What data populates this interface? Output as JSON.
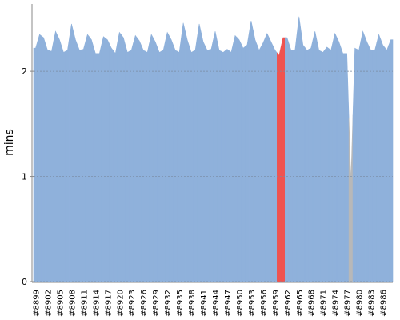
{
  "chart_data": {
    "type": "area",
    "y_label": "mins",
    "categories": [
      "#8899",
      null,
      null,
      "#8902",
      null,
      null,
      "#8905",
      null,
      null,
      "#8908",
      null,
      null,
      "#8911",
      null,
      null,
      "#8914",
      null,
      null,
      "#8917",
      null,
      null,
      "#8920",
      null,
      null,
      "#8923",
      null,
      null,
      "#8926",
      null,
      null,
      "#8929",
      null,
      null,
      "#8932",
      null,
      null,
      "#8935",
      null,
      null,
      "#8938",
      null,
      null,
      "#8941",
      null,
      null,
      "#8944",
      null,
      null,
      "#8947",
      null,
      null,
      "#8950",
      null,
      null,
      "#8953",
      null,
      null,
      "#8956",
      null,
      null,
      "#8959",
      null,
      null,
      "#8962",
      null,
      null,
      "#8965",
      null,
      null,
      "#8968",
      null,
      null,
      "#8971",
      null,
      null,
      "#8974",
      null,
      null,
      "#8977",
      null,
      null,
      "#8980",
      null,
      null,
      "#8983",
      null,
      null,
      "#8986",
      null,
      null
    ],
    "values": [
      2.22,
      2.35,
      2.32,
      2.2,
      2.19,
      2.38,
      2.3,
      2.18,
      2.2,
      2.45,
      2.3,
      2.2,
      2.21,
      2.35,
      2.3,
      2.17,
      2.17,
      2.33,
      2.3,
      2.22,
      2.17,
      2.37,
      2.32,
      2.18,
      2.2,
      2.34,
      2.29,
      2.2,
      2.18,
      2.35,
      2.28,
      2.18,
      2.2,
      2.37,
      2.3,
      2.2,
      2.18,
      2.46,
      2.3,
      2.18,
      2.2,
      2.45,
      2.28,
      2.2,
      2.21,
      2.38,
      2.2,
      2.18,
      2.21,
      2.18,
      2.34,
      2.3,
      2.22,
      2.25,
      2.48,
      2.3,
      2.2,
      2.27,
      2.36,
      2.28,
      2.2,
      2.15,
      2.32,
      2.32,
      2.2,
      2.2,
      2.52,
      2.25,
      2.2,
      2.22,
      2.38,
      2.2,
      2.18,
      2.23,
      2.2,
      2.36,
      2.28,
      2.17,
      2.17,
      0.95,
      2.22,
      2.2,
      2.38,
      2.28,
      2.2,
      2.2,
      2.35,
      2.25,
      2.2,
      2.3
    ],
    "colors": [
      "#8fb1db",
      "#8fb1db",
      "#8fb1db",
      "#8fb1db",
      "#8fb1db",
      "#8fb1db",
      "#8fb1db",
      "#8fb1db",
      "#8fb1db",
      "#8fb1db",
      "#8fb1db",
      "#8fb1db",
      "#8fb1db",
      "#8fb1db",
      "#8fb1db",
      "#8fb1db",
      "#8fb1db",
      "#8fb1db",
      "#8fb1db",
      "#8fb1db",
      "#8fb1db",
      "#8fb1db",
      "#8fb1db",
      "#8fb1db",
      "#8fb1db",
      "#8fb1db",
      "#8fb1db",
      "#8fb1db",
      "#8fb1db",
      "#8fb1db",
      "#8fb1db",
      "#8fb1db",
      "#8fb1db",
      "#8fb1db",
      "#8fb1db",
      "#8fb1db",
      "#8fb1db",
      "#8fb1db",
      "#8fb1db",
      "#8fb1db",
      "#8fb1db",
      "#8fb1db",
      "#8fb1db",
      "#8fb1db",
      "#8fb1db",
      "#8fb1db",
      "#8fb1db",
      "#8fb1db",
      "#8fb1db",
      "#8fb1db",
      "#8fb1db",
      "#8fb1db",
      "#8fb1db",
      "#8fb1db",
      "#8fb1db",
      "#8fb1db",
      "#8fb1db",
      "#8fb1db",
      "#8fb1db",
      "#8fb1db",
      "#8fb1db",
      "#ef5350",
      "#ef5350",
      "#8fb1db",
      "#8fb1db",
      "#8fb1db",
      "#8fb1db",
      "#8fb1db",
      "#8fb1db",
      "#8fb1db",
      "#8fb1db",
      "#8fb1db",
      "#8fb1db",
      "#8fb1db",
      "#8fb1db",
      "#8fb1db",
      "#8fb1db",
      "#8fb1db",
      "#8fb1db",
      "#b8b8b8",
      "#8fb1db",
      "#8fb1db",
      "#8fb1db",
      "#8fb1db",
      "#8fb1db",
      "#8fb1db",
      "#8fb1db",
      "#8fb1db",
      "#8fb1db",
      "#8fb1db"
    ],
    "ylim": [
      0,
      2.64
    ],
    "yticks": [
      0,
      1,
      2
    ],
    "grid": true
  }
}
